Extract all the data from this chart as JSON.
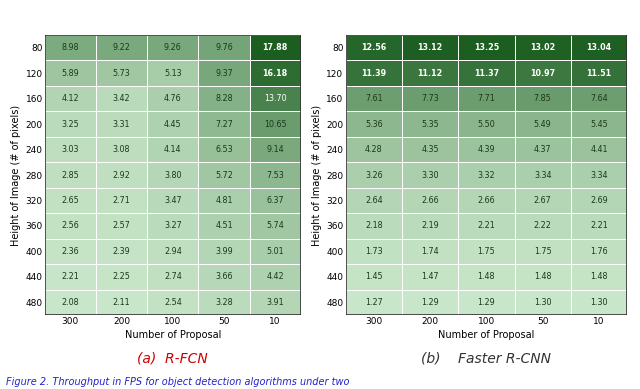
{
  "rfcn": {
    "rows": [
      80,
      120,
      160,
      200,
      240,
      280,
      320,
      360,
      400,
      440,
      480
    ],
    "cols": [
      300,
      200,
      100,
      50,
      10
    ],
    "values": [
      [
        8.98,
        9.22,
        9.26,
        9.76,
        17.88
      ],
      [
        5.89,
        5.73,
        5.13,
        9.37,
        16.18
      ],
      [
        4.12,
        3.42,
        4.76,
        8.28,
        13.7
      ],
      [
        3.25,
        3.31,
        4.45,
        7.27,
        10.65
      ],
      [
        3.03,
        3.08,
        4.14,
        6.53,
        9.14
      ],
      [
        2.85,
        2.92,
        3.8,
        5.72,
        7.53
      ],
      [
        2.65,
        2.71,
        3.47,
        4.81,
        6.37
      ],
      [
        2.56,
        2.57,
        3.27,
        4.51,
        5.74
      ],
      [
        2.36,
        2.39,
        2.94,
        3.99,
        5.01
      ],
      [
        2.21,
        2.25,
        2.74,
        3.66,
        4.42
      ],
      [
        2.08,
        2.11,
        2.54,
        3.28,
        3.91
      ]
    ],
    "title": "(a)  R-FCN",
    "title_color": "#cc0000"
  },
  "faster_rcnn": {
    "rows": [
      80,
      120,
      160,
      200,
      240,
      280,
      320,
      360,
      400,
      440,
      480
    ],
    "cols": [
      300,
      200,
      100,
      50,
      10
    ],
    "values": [
      [
        12.56,
        13.12,
        13.25,
        13.02,
        13.04
      ],
      [
        11.39,
        11.12,
        11.37,
        10.97,
        11.51
      ],
      [
        7.61,
        7.73,
        7.71,
        7.85,
        7.64
      ],
      [
        5.36,
        5.35,
        5.5,
        5.49,
        5.45
      ],
      [
        4.28,
        4.35,
        4.39,
        4.37,
        4.41
      ],
      [
        3.26,
        3.3,
        3.32,
        3.34,
        3.34
      ],
      [
        2.64,
        2.66,
        2.66,
        2.67,
        2.69
      ],
      [
        2.18,
        2.19,
        2.21,
        2.22,
        2.21
      ],
      [
        1.73,
        1.74,
        1.75,
        1.75,
        1.76
      ],
      [
        1.45,
        1.47,
        1.48,
        1.48,
        1.48
      ],
      [
        1.27,
        1.29,
        1.29,
        1.3,
        1.3
      ]
    ],
    "title": "(b)    Faster R-CNN",
    "title_color": "#333333"
  },
  "xlabel": "Number of Proposal",
  "ylabel": "Height of Image (# of pixels)",
  "fig_caption": "Figure 2. Throughput in FPS for object detection algorithms under two",
  "background": "#ffffff",
  "light_green": [
    200,
    230,
    201
  ],
  "dark_green": [
    27,
    94,
    32
  ],
  "cell_edge_color": "#aaaaaa",
  "outer_edge_color": "#333333"
}
